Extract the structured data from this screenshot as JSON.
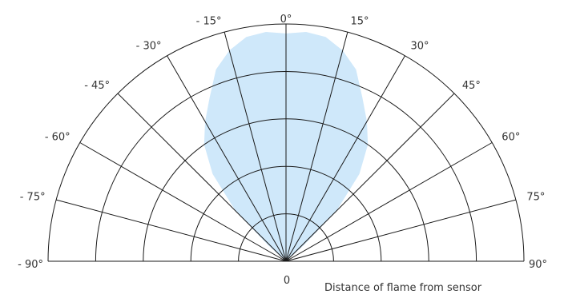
{
  "chart_data": {
    "type": "polar",
    "title": "",
    "xlabel": "Distance of flame from sensor",
    "center_label": "0",
    "angle_range": [
      -90,
      90
    ],
    "angle_ticks": [
      {
        "angle": -90,
        "label": "- 90°"
      },
      {
        "angle": -75,
        "label": "- 75°"
      },
      {
        "angle": -60,
        "label": "- 60°"
      },
      {
        "angle": -45,
        "label": "- 45°"
      },
      {
        "angle": -30,
        "label": "- 30°"
      },
      {
        "angle": -15,
        "label": "- 15°"
      },
      {
        "angle": 0,
        "label": "0°"
      },
      {
        "angle": 15,
        "label": "15°"
      },
      {
        "angle": 30,
        "label": "30°"
      },
      {
        "angle": 45,
        "label": "45°"
      },
      {
        "angle": 60,
        "label": "60°"
      },
      {
        "angle": 75,
        "label": "75°"
      },
      {
        "angle": 90,
        "label": "90°"
      }
    ],
    "rings": 5,
    "grid": true,
    "detection_zone": {
      "color": "#cfe8fa",
      "points": [
        {
          "angle": -50,
          "r": 0
        },
        {
          "angle": -48,
          "r": 0.5
        },
        {
          "angle": -45,
          "r": 1.5
        },
        {
          "angle": -40,
          "r": 2.4
        },
        {
          "angle": -35,
          "r": 3.0
        },
        {
          "angle": -30,
          "r": 3.4
        },
        {
          "angle": -25,
          "r": 3.8
        },
        {
          "angle": -20,
          "r": 4.3
        },
        {
          "angle": -15,
          "r": 4.6
        },
        {
          "angle": -10,
          "r": 4.8
        },
        {
          "angle": -5,
          "r": 4.85
        },
        {
          "angle": 0,
          "r": 4.8
        },
        {
          "angle": 5,
          "r": 4.85
        },
        {
          "angle": 10,
          "r": 4.8
        },
        {
          "angle": 15,
          "r": 4.6
        },
        {
          "angle": 20,
          "r": 4.3
        },
        {
          "angle": 25,
          "r": 3.8
        },
        {
          "angle": 30,
          "r": 3.4
        },
        {
          "angle": 35,
          "r": 3.0
        },
        {
          "angle": 40,
          "r": 2.4
        },
        {
          "angle": 45,
          "r": 1.5
        },
        {
          "angle": 48,
          "r": 0.5
        },
        {
          "angle": 50,
          "r": 0
        }
      ]
    }
  }
}
